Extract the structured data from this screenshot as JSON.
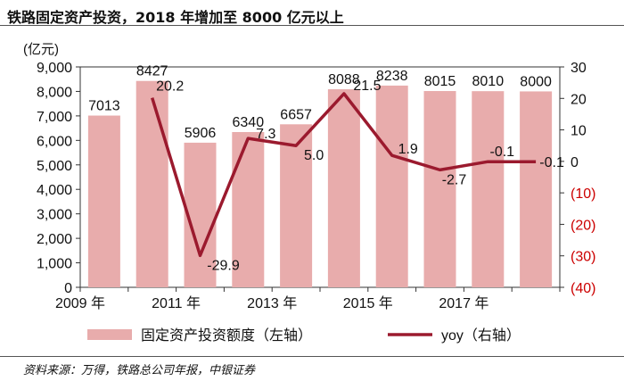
{
  "title": "铁路固定资产投资，2018 年增加至 8000 亿元以上",
  "source": "资料来源：万得，铁路总公司年报，中银证券",
  "chart_data": {
    "type": "bar+line",
    "years": [
      "2009",
      "2010",
      "2011",
      "2012",
      "2013",
      "2014",
      "2015",
      "2016",
      "2017",
      "2018"
    ],
    "x_tick_labels": [
      "2009 年",
      "2011 年",
      "2013 年",
      "2015 年",
      "2017 年"
    ],
    "bar_series": {
      "name": "固定资产投资额度（左轴）",
      "values": [
        7013,
        8427,
        5906,
        6340,
        6657,
        8088,
        8238,
        8015,
        8010,
        8000
      ],
      "labels": [
        "7013",
        "8427",
        "5906",
        "6340",
        "6657",
        "8088",
        "8238",
        "8015",
        "8010",
        "8000"
      ],
      "color": "#e8acac"
    },
    "line_series": {
      "name": "yoy（右轴）",
      "values": [
        null,
        20.2,
        -29.9,
        7.3,
        5.0,
        21.5,
        1.9,
        -2.7,
        -0.1,
        -0.1
      ],
      "labels": [
        "",
        "20.2",
        "-29.9",
        "7.3",
        "5.0",
        "21.5",
        "1.9",
        "-2.7",
        "-0.1",
        "-0.1"
      ],
      "color": "#9b1a2e"
    },
    "left_axis": {
      "unit": "(亿元)",
      "min": 0,
      "max": 9000,
      "step": 1000,
      "tick_labels": [
        "0",
        "1,000",
        "2,000",
        "3,000",
        "4,000",
        "5,000",
        "6,000",
        "7,000",
        "8,000",
        "9,000"
      ]
    },
    "right_axis": {
      "min": -40,
      "max": 30,
      "step": 10,
      "tick_labels": [
        "(40)",
        "(30)",
        "(20)",
        "(10)",
        "0",
        "10",
        "20",
        "30"
      ],
      "negative_color": "#cc0000"
    }
  }
}
